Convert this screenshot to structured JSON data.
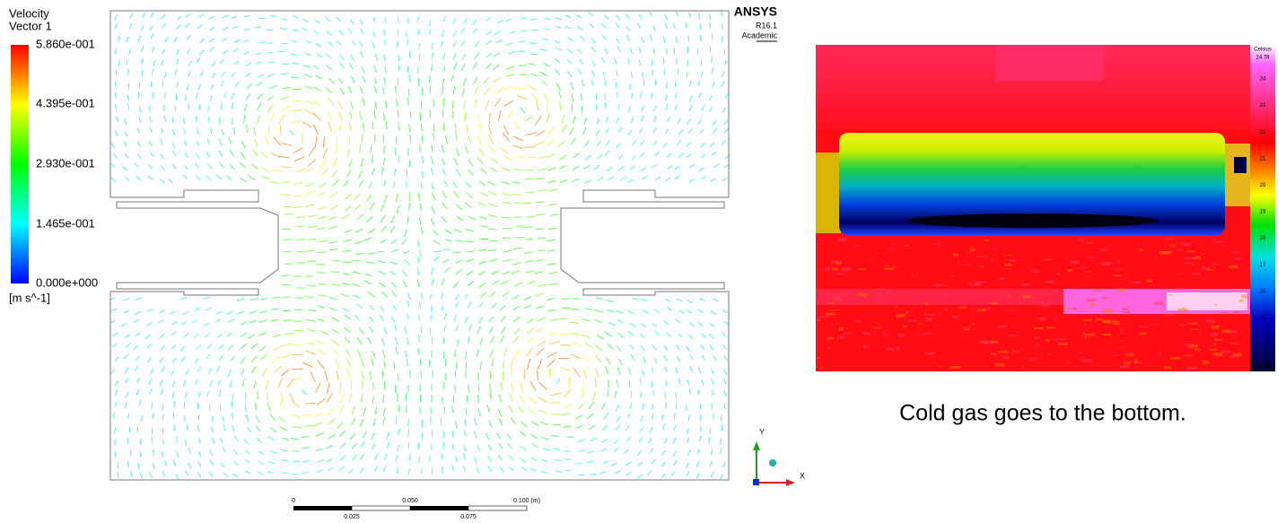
{
  "legend": {
    "title": "Velocity",
    "subtitle": "Vector 1",
    "ticks": [
      "5.860e-001",
      "4.395e-001",
      "2.930e-001",
      "1.465e-001",
      "0.000e+000"
    ],
    "unit": "[m s^-1]"
  },
  "logo": {
    "name": "ANSYS",
    "version": "R16.1",
    "edition": "Academic"
  },
  "scale_bar": {
    "top_labels": [
      "0",
      "0.050",
      "0.100  (m)"
    ],
    "bottom_labels": [
      "0.025",
      "0.075"
    ]
  },
  "axes": {
    "y": "Y",
    "x": "X"
  },
  "thermal": {
    "unit": "Celsius",
    "max": "24.78",
    "ticks": [
      "24",
      "23",
      "22",
      "21",
      "20",
      "19",
      "18",
      "17",
      "16",
      "15",
      "14"
    ],
    "min": "12.94"
  },
  "caption": "Cold gas goes to the bottom."
}
